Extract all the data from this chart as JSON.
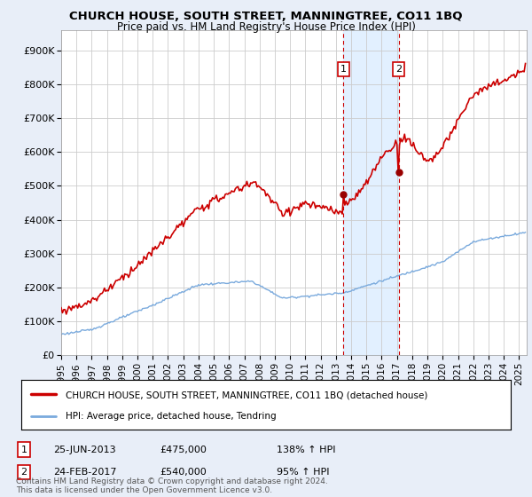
{
  "title": "CHURCH HOUSE, SOUTH STREET, MANNINGTREE, CO11 1BQ",
  "subtitle": "Price paid vs. HM Land Registry's House Price Index (HPI)",
  "yticks": [
    0,
    100000,
    200000,
    300000,
    400000,
    500000,
    600000,
    700000,
    800000,
    900000
  ],
  "ytick_labels": [
    "£0",
    "£100K",
    "£200K",
    "£300K",
    "£400K",
    "£500K",
    "£600K",
    "£700K",
    "£800K",
    "£900K"
  ],
  "ylim": [
    0,
    960000
  ],
  "xlim_start": 1995.0,
  "xlim_end": 2025.5,
  "sale1_x": 2013.49,
  "sale1_y": 475000,
  "sale2_x": 2017.12,
  "sale2_y": 540000,
  "sale1_label": "25-JUN-2013",
  "sale1_price": "£475,000",
  "sale1_hpi": "138% ↑ HPI",
  "sale2_label": "24-FEB-2017",
  "sale2_price": "£540,000",
  "sale2_hpi": "95% ↑ HPI",
  "line1_color": "#cc0000",
  "line2_color": "#7aaadd",
  "shading_color": "#ddeeff",
  "marker_color": "#990000",
  "vline_color": "#cc0000",
  "legend_line1": "CHURCH HOUSE, SOUTH STREET, MANNINGTREE, CO11 1BQ (detached house)",
  "legend_line2": "HPI: Average price, detached house, Tendring",
  "footnote": "Contains HM Land Registry data © Crown copyright and database right 2024.\nThis data is licensed under the Open Government Licence v3.0.",
  "background_color": "#e8eef8",
  "plot_bg_color": "#ffffff",
  "grid_color": "#cccccc"
}
